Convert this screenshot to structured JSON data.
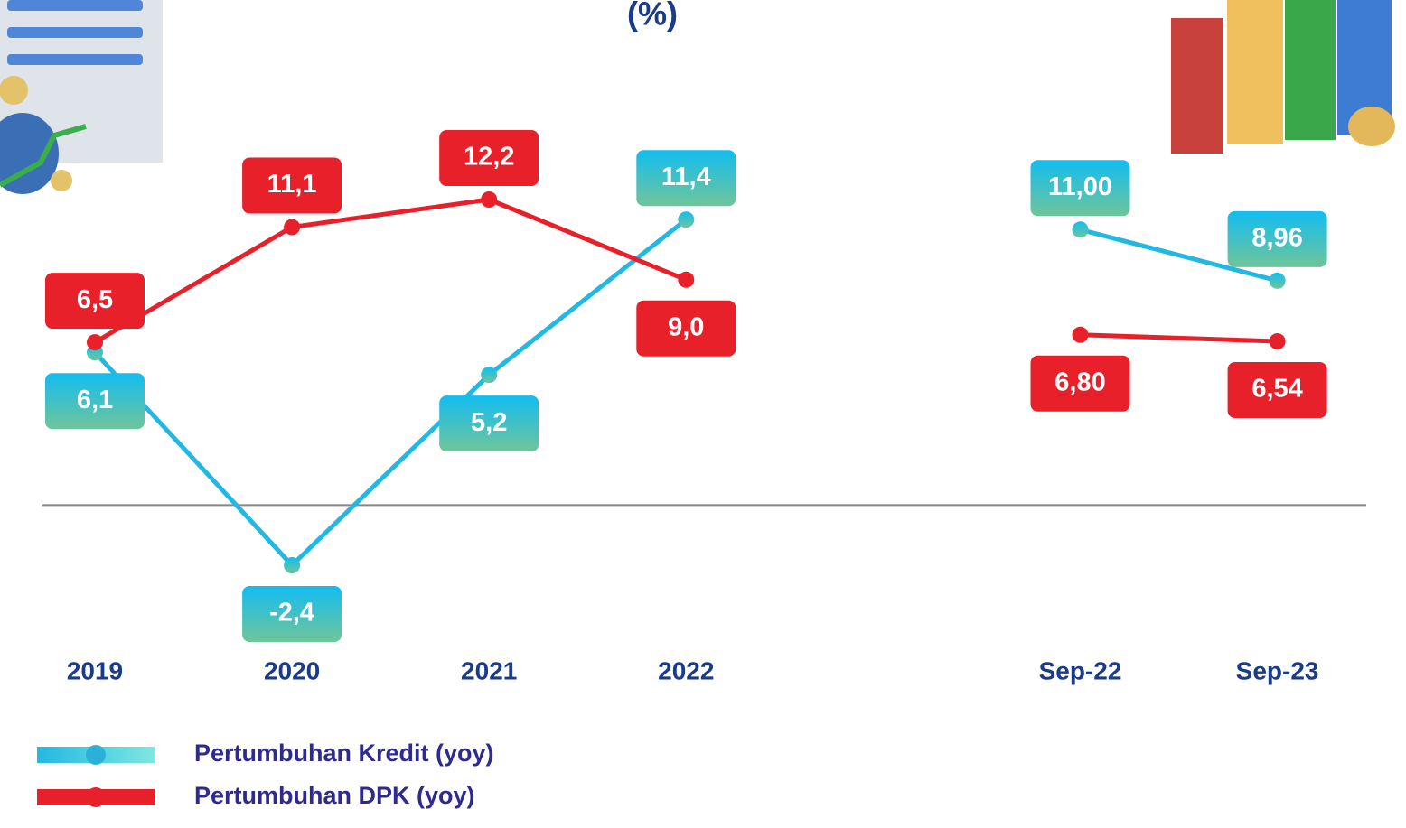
{
  "chart_data": {
    "type": "line",
    "title": "(%)",
    "categories": [
      "2019",
      "2020",
      "2021",
      "2022",
      null,
      "Sep-22",
      "Sep-23"
    ],
    "series": [
      {
        "name": "Pertumbuhan Kredit (yoy)",
        "color": "#22b8e2",
        "values": [
          6.1,
          -2.4,
          5.2,
          11.4,
          null,
          11.0,
          8.96
        ],
        "value_labels": [
          "6,1",
          "-2,4",
          "5,2",
          "11,4",
          null,
          "11,00",
          "8,96"
        ]
      },
      {
        "name": "Pertumbuhan DPK (yoy)",
        "color": "#e8202a",
        "values": [
          6.5,
          11.1,
          12.2,
          9.0,
          null,
          6.8,
          6.54
        ],
        "value_labels": [
          "6,5",
          "11,1",
          "12,2",
          "9,0",
          null,
          "6,80",
          "6,54"
        ]
      }
    ]
  }
}
